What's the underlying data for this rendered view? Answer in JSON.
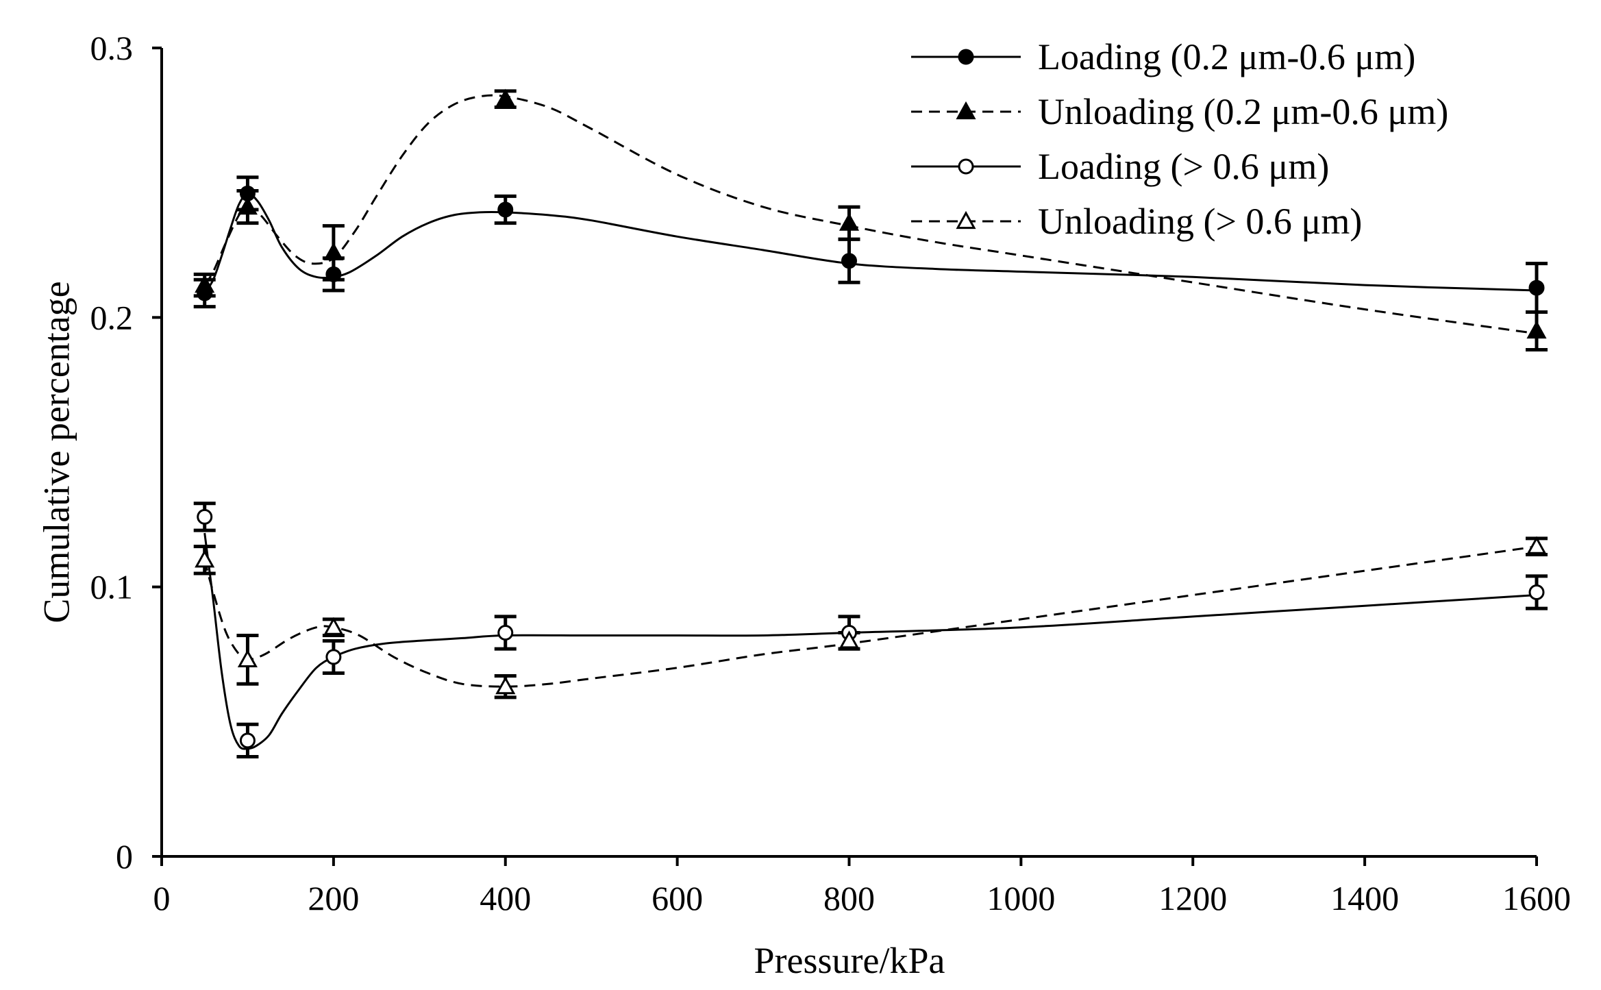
{
  "chart_data": {
    "type": "line",
    "title": "",
    "xlabel": "Pressure/kPa",
    "ylabel": "Cumulative percentage",
    "xlim": [
      0,
      1600
    ],
    "ylim": [
      0,
      0.3
    ],
    "x_ticks": [
      0,
      200,
      400,
      600,
      800,
      1000,
      1200,
      1400,
      1600
    ],
    "x_tick_labels": [
      "0",
      "200",
      "400",
      "600",
      "800",
      "1000",
      "1200",
      "1400",
      "1600"
    ],
    "y_ticks": [
      0,
      0.1,
      0.2,
      0.3
    ],
    "y_tick_labels": [
      "0",
      "0.1",
      "0.2",
      "0.3"
    ],
    "grid": false,
    "legend_position": "top-right",
    "series": [
      {
        "name": "Loading (0.2 μm-0.6  μm)",
        "line_style": "solid",
        "marker": "filled-circle",
        "x": [
          50,
          100,
          200,
          400,
          800,
          1600
        ],
        "values": [
          0.209,
          0.246,
          0.216,
          0.24,
          0.221,
          0.211
        ],
        "errors": [
          0.005,
          0.006,
          0.006,
          0.005,
          0.008,
          0.009
        ],
        "curve": [
          [
            50,
            0.209
          ],
          [
            60,
            0.214
          ],
          [
            70,
            0.223
          ],
          [
            80,
            0.233
          ],
          [
            90,
            0.242
          ],
          [
            100,
            0.246
          ],
          [
            112,
            0.243
          ],
          [
            125,
            0.236
          ],
          [
            140,
            0.226
          ],
          [
            160,
            0.218
          ],
          [
            180,
            0.215
          ],
          [
            200,
            0.215
          ],
          [
            220,
            0.217
          ],
          [
            250,
            0.223
          ],
          [
            280,
            0.23
          ],
          [
            310,
            0.235
          ],
          [
            340,
            0.238
          ],
          [
            370,
            0.239
          ],
          [
            400,
            0.239
          ],
          [
            450,
            0.238
          ],
          [
            500,
            0.236
          ],
          [
            600,
            0.23
          ],
          [
            700,
            0.225
          ],
          [
            800,
            0.22
          ],
          [
            900,
            0.218
          ],
          [
            1000,
            0.217
          ],
          [
            1200,
            0.215
          ],
          [
            1400,
            0.212
          ],
          [
            1600,
            0.21
          ]
        ]
      },
      {
        "name": "Unloading (0.2 μm-0.6  μm)",
        "line_style": "dashed",
        "marker": "filled-triangle",
        "x": [
          50,
          100,
          200,
          400,
          800,
          1600
        ],
        "values": [
          0.212,
          0.241,
          0.224,
          0.281,
          0.235,
          0.195
        ],
        "errors": [
          0.004,
          0.006,
          0.01,
          0.003,
          0.006,
          0.007
        ],
        "curve": [
          [
            50,
            0.212
          ],
          [
            60,
            0.217
          ],
          [
            75,
            0.228
          ],
          [
            90,
            0.238
          ],
          [
            100,
            0.241
          ],
          [
            115,
            0.238
          ],
          [
            135,
            0.23
          ],
          [
            155,
            0.223
          ],
          [
            175,
            0.22
          ],
          [
            200,
            0.222
          ],
          [
            225,
            0.232
          ],
          [
            250,
            0.245
          ],
          [
            280,
            0.26
          ],
          [
            310,
            0.272
          ],
          [
            340,
            0.279
          ],
          [
            370,
            0.282
          ],
          [
            400,
            0.282
          ],
          [
            450,
            0.278
          ],
          [
            500,
            0.27
          ],
          [
            600,
            0.253
          ],
          [
            700,
            0.241
          ],
          [
            800,
            0.234
          ],
          [
            900,
            0.228
          ],
          [
            1000,
            0.223
          ],
          [
            1200,
            0.213
          ],
          [
            1400,
            0.203
          ],
          [
            1600,
            0.194
          ]
        ]
      },
      {
        "name": "Loading (> 0.6 μm)",
        "line_style": "solid",
        "marker": "open-circle",
        "x": [
          50,
          100,
          200,
          400,
          800,
          1600
        ],
        "values": [
          0.126,
          0.043,
          0.074,
          0.083,
          0.083,
          0.098
        ],
        "errors": [
          0.005,
          0.006,
          0.006,
          0.006,
          0.006,
          0.006
        ],
        "curve": [
          [
            50,
            0.12
          ],
          [
            60,
            0.095
          ],
          [
            70,
            0.068
          ],
          [
            80,
            0.049
          ],
          [
            90,
            0.041
          ],
          [
            100,
            0.04
          ],
          [
            110,
            0.041
          ],
          [
            125,
            0.045
          ],
          [
            140,
            0.053
          ],
          [
            160,
            0.062
          ],
          [
            180,
            0.07
          ],
          [
            200,
            0.074
          ],
          [
            225,
            0.077
          ],
          [
            260,
            0.079
          ],
          [
            300,
            0.08
          ],
          [
            350,
            0.081
          ],
          [
            400,
            0.082
          ],
          [
            500,
            0.082
          ],
          [
            600,
            0.082
          ],
          [
            700,
            0.082
          ],
          [
            800,
            0.083
          ],
          [
            1000,
            0.085
          ],
          [
            1200,
            0.089
          ],
          [
            1400,
            0.093
          ],
          [
            1600,
            0.097
          ]
        ]
      },
      {
        "name": "Unloading (> 0.6 μm)",
        "line_style": "dashed",
        "marker": "open-triangle",
        "x": [
          50,
          100,
          200,
          400,
          800,
          1600
        ],
        "values": [
          0.11,
          0.073,
          0.085,
          0.063,
          0.08,
          0.115
        ],
        "errors": [
          0.005,
          0.009,
          0.003,
          0.004,
          0.003,
          0.003
        ],
        "curve": [
          [
            50,
            0.11
          ],
          [
            60,
            0.098
          ],
          [
            75,
            0.083
          ],
          [
            90,
            0.075
          ],
          [
            100,
            0.073
          ],
          [
            120,
            0.075
          ],
          [
            150,
            0.081
          ],
          [
            180,
            0.085
          ],
          [
            200,
            0.085
          ],
          [
            230,
            0.082
          ],
          [
            270,
            0.074
          ],
          [
            310,
            0.068
          ],
          [
            350,
            0.064
          ],
          [
            400,
            0.063
          ],
          [
            450,
            0.064
          ],
          [
            500,
            0.066
          ],
          [
            600,
            0.07
          ],
          [
            700,
            0.075
          ],
          [
            800,
            0.079
          ],
          [
            1000,
            0.088
          ],
          [
            1200,
            0.097
          ],
          [
            1400,
            0.106
          ],
          [
            1600,
            0.115
          ]
        ]
      }
    ]
  }
}
